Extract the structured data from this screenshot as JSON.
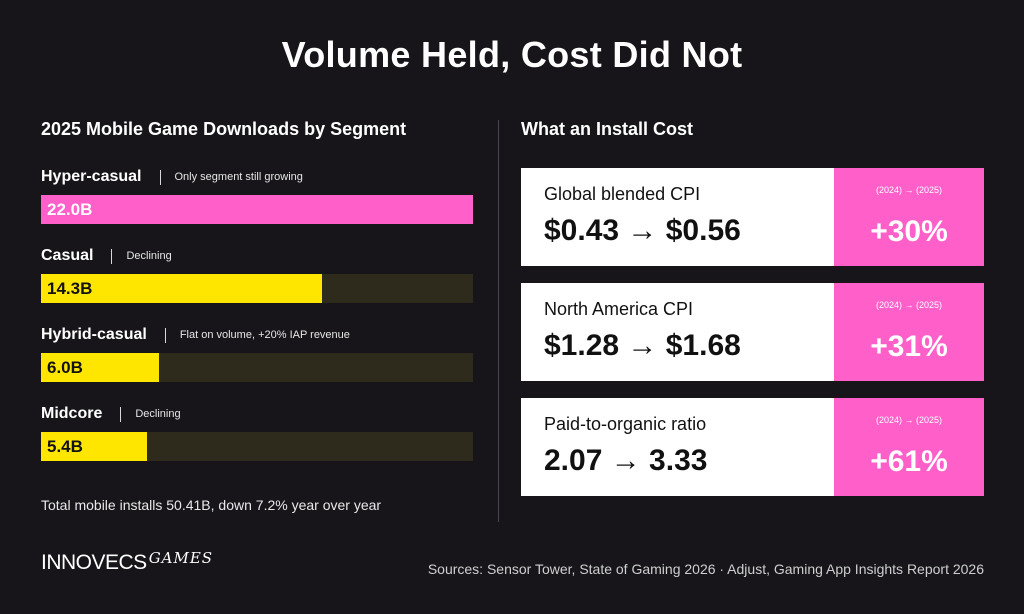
{
  "title": "Volume Held, Cost Did Not",
  "left": {
    "section_title": "2025 Mobile Game Downloads by Segment",
    "footnote": "Total mobile installs 50.41B, down 7.2% year over year"
  },
  "chart_data": {
    "type": "bar",
    "title": "2025 Mobile Game Downloads by Segment",
    "categories": [
      "Hyper-casual",
      "Casual",
      "Hybrid-casual",
      "Midcore"
    ],
    "notes": [
      "Only segment still growing",
      "Declining",
      "Flat on volume, +20% IAP revenue",
      "Declining"
    ],
    "values": [
      22.0,
      14.3,
      6.0,
      5.4
    ],
    "value_labels": [
      "22.0B",
      "14.3B",
      "6.0B",
      "5.4B"
    ],
    "unit": "B",
    "xlim": [
      0,
      22.0
    ],
    "colors": [
      "#ff5fc9",
      "#ffe600",
      "#ffe600",
      "#ffe600"
    ],
    "track_color": "#2e2a1c",
    "label_colors": [
      "#ffffff",
      "#111111",
      "#111111",
      "#111111"
    ]
  },
  "right": {
    "section_title": "What an Install Cost",
    "cards": [
      {
        "label": "Global blended CPI",
        "values": "$0.43 → $0.56",
        "years": "(2024) → (2025)",
        "pct": "+30%"
      },
      {
        "label": "North America CPI",
        "values": "$1.28 → $1.68",
        "years": "(2024) → (2025)",
        "pct": "+31%"
      },
      {
        "label": "Paid-to-organic ratio",
        "values": "2.07 → 3.33",
        "years": "(2024) → (2025)",
        "pct": "+61%"
      }
    ],
    "accent_color": "#ff5fc9"
  },
  "footer": {
    "brand_main": "INNOVECS",
    "brand_script": "GAMES",
    "sources": "Sources: Sensor Tower, State of Gaming 2026 · Adjust, Gaming App Insights Report 2026"
  }
}
